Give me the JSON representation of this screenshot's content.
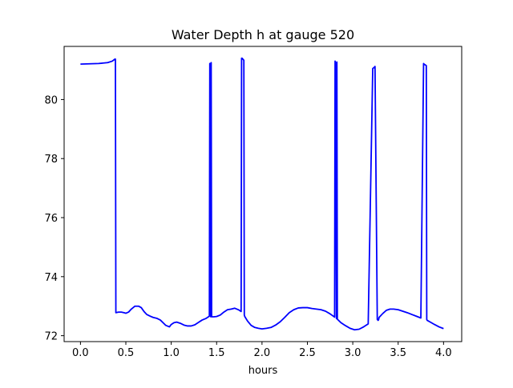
{
  "chart_data": {
    "type": "line",
    "title": "Water Depth h at gauge 520",
    "xlabel": "hours",
    "ylabel": "",
    "xlim": [
      -0.18,
      4.2
    ],
    "ylim": [
      71.8,
      81.8
    ],
    "xticks": [
      0.0,
      0.5,
      1.0,
      1.5,
      2.0,
      2.5,
      3.0,
      3.5,
      4.0
    ],
    "xtick_labels": [
      "0.0",
      "0.5",
      "1.0",
      "1.5",
      "2.0",
      "2.5",
      "3.0",
      "3.5",
      "4.0"
    ],
    "yticks": [
      72,
      74,
      76,
      78,
      80
    ],
    "ytick_labels": [
      "72",
      "74",
      "76",
      "78",
      "80"
    ],
    "grid": false,
    "series": [
      {
        "color": "#0000ff",
        "x": [
          0.0,
          0.1,
          0.2,
          0.3,
          0.35,
          0.38,
          0.385,
          0.39,
          0.42,
          0.45,
          0.48,
          0.5,
          0.53,
          0.56,
          0.6,
          0.64,
          0.67,
          0.7,
          0.73,
          0.77,
          0.8,
          0.84,
          0.88,
          0.91,
          0.94,
          0.98,
          1.0,
          1.03,
          1.06,
          1.1,
          1.14,
          1.18,
          1.22,
          1.26,
          1.3,
          1.34,
          1.38,
          1.42,
          1.425,
          1.43,
          1.435,
          1.44,
          1.445,
          1.47,
          1.5,
          1.54,
          1.58,
          1.62,
          1.66,
          1.7,
          1.74,
          1.77,
          1.775,
          1.78,
          1.8,
          1.805,
          1.81,
          1.84,
          1.88,
          1.92,
          1.96,
          2.0,
          2.05,
          2.1,
          2.15,
          2.2,
          2.25,
          2.3,
          2.35,
          2.4,
          2.45,
          2.5,
          2.55,
          2.6,
          2.65,
          2.7,
          2.75,
          2.8,
          2.805,
          2.81,
          2.82,
          2.825,
          2.83,
          2.87,
          2.92,
          2.97,
          3.02,
          3.07,
          3.12,
          3.17,
          3.22,
          3.24,
          3.245,
          3.27,
          3.28,
          3.285,
          3.29,
          3.33,
          3.37,
          3.41,
          3.45,
          3.5,
          3.55,
          3.6,
          3.65,
          3.7,
          3.75,
          3.78,
          3.785,
          3.81,
          3.815,
          3.82,
          3.86,
          3.9,
          3.95,
          4.0
        ],
        "y": [
          81.2,
          81.21,
          81.22,
          81.25,
          81.3,
          81.37,
          81.37,
          72.78,
          72.8,
          72.8,
          72.78,
          72.76,
          72.8,
          72.9,
          73.0,
          73.0,
          72.95,
          72.82,
          72.72,
          72.66,
          72.62,
          72.59,
          72.53,
          72.44,
          72.35,
          72.3,
          72.38,
          72.44,
          72.46,
          72.42,
          72.36,
          72.33,
          72.33,
          72.37,
          72.45,
          72.53,
          72.58,
          72.66,
          81.22,
          81.22,
          72.64,
          81.25,
          72.64,
          72.64,
          72.65,
          72.7,
          72.8,
          72.88,
          72.9,
          72.93,
          72.88,
          72.82,
          81.4,
          81.4,
          81.33,
          72.7,
          72.65,
          72.5,
          72.35,
          72.28,
          72.25,
          72.23,
          72.25,
          72.28,
          72.36,
          72.47,
          72.62,
          72.78,
          72.88,
          72.94,
          72.95,
          72.95,
          72.92,
          72.9,
          72.88,
          72.83,
          72.74,
          72.63,
          81.3,
          81.25,
          72.58,
          81.27,
          72.56,
          72.44,
          72.34,
          72.25,
          72.2,
          72.22,
          72.3,
          72.4,
          81.05,
          81.1,
          81.12,
          72.55,
          72.52,
          72.55,
          72.62,
          72.75,
          72.86,
          72.9,
          72.9,
          72.88,
          72.83,
          72.78,
          72.72,
          72.66,
          72.6,
          81.22,
          81.2,
          81.15,
          72.55,
          72.52,
          72.45,
          72.38,
          72.3,
          72.24
        ]
      }
    ]
  }
}
